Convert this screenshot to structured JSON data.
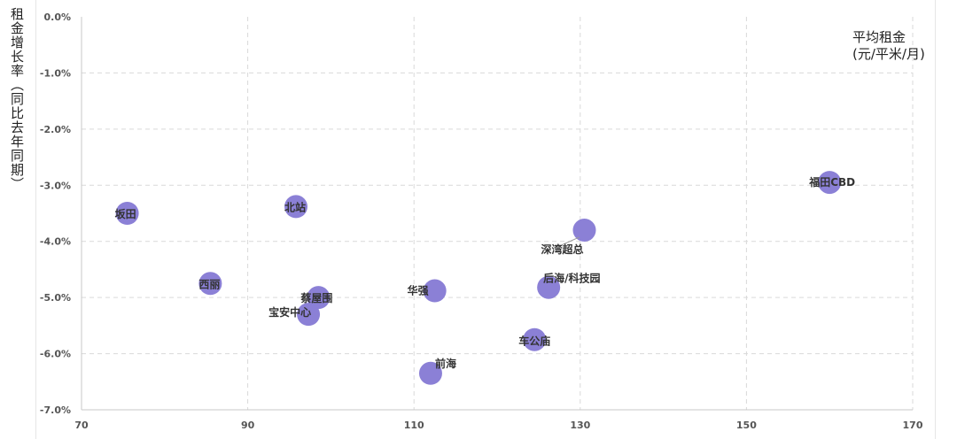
{
  "chart_data": {
    "type": "scatter",
    "title": "",
    "ylabel": "租金增长率（同比去年同期）",
    "xlabel_lines": [
      "平均租金",
      "(元/平米/月)"
    ],
    "xlim": [
      70,
      170
    ],
    "ylim": [
      -7.0,
      0.0
    ],
    "xticks": [
      70,
      90,
      110,
      130,
      150,
      170
    ],
    "yticks": [
      0.0,
      -1.0,
      -2.0,
      -3.0,
      -4.0,
      -5.0,
      -6.0,
      -7.0
    ],
    "ytick_labels": [
      "0.0%",
      "-1.0%",
      "-2.0%",
      "-3.0%",
      "-4.0%",
      "-5.0%",
      "-6.0%",
      "-7.0%"
    ],
    "grid": true,
    "marker_color": "#8b80d6",
    "points": [
      {
        "label": "坂田",
        "x": 75.5,
        "y": -3.5
      },
      {
        "label": "北站",
        "x": 95.8,
        "y": -3.38
      },
      {
        "label": "西丽",
        "x": 85.5,
        "y": -4.75
      },
      {
        "label": "蔡屋围",
        "x": 98.5,
        "y": -5.0
      },
      {
        "label": "宝安中心",
        "x": 97.3,
        "y": -5.3
      },
      {
        "label": "华强",
        "x": 112.5,
        "y": -4.88
      },
      {
        "label": "前海",
        "x": 112.0,
        "y": -6.35
      },
      {
        "label": "深湾超总",
        "x": 130.5,
        "y": -3.8
      },
      {
        "label": "后海/科技园",
        "x": 126.2,
        "y": -4.82
      },
      {
        "label": "车公庙",
        "x": 124.5,
        "y": -5.75
      },
      {
        "label": "福田CBD",
        "x": 160.0,
        "y": -2.95
      }
    ]
  }
}
